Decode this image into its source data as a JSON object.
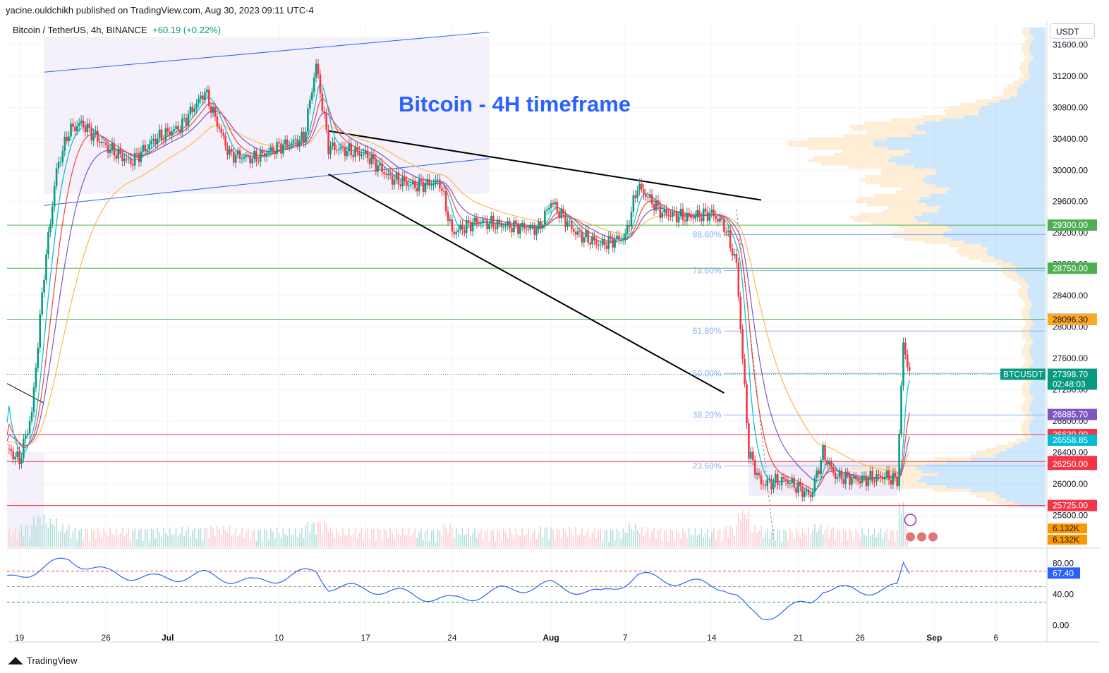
{
  "header": {
    "published": "yacine.ouldchikh published on TradingView.com, Aug 30, 2023 09:11 UTC-4",
    "symbol": "Bitcoin / TetherUS, 4h, BINANCE",
    "change": "+60.19 (+0.22%)",
    "currency": "USDT"
  },
  "annotation_title": "Bitcoin - 4H timeframe",
  "footer": {
    "brand": "TradingView",
    "logo": "tradingview-logo-icon"
  },
  "colors": {
    "up": "#089981",
    "down": "#f23645",
    "ema_fast": "#00bcd4",
    "ema_mid": "#f44336",
    "ema_slow": "#7e57c2",
    "ema_long": "#ffb74d",
    "rsi": "#2962ff",
    "fib": "#8fb0f5",
    "green_level": "#4caf50",
    "red_level": "#f23645",
    "title": "#2962ff"
  },
  "chart_data": [
    {
      "type": "candlestick",
      "title": "Bitcoin / TetherUS, 4h, BINANCE",
      "y_axis": {
        "ticks": [
          25600,
          26000,
          26400,
          26800,
          27200,
          27600,
          28000,
          28400,
          28800,
          29200,
          29600,
          30000,
          30400,
          30800,
          31200,
          31600
        ],
        "tick_labels": [
          "25600.00",
          "26000.00",
          "26400.00",
          "26800.00",
          "27200.00",
          "27600.00",
          "28000.00",
          "28400.00",
          "28800.00",
          "29200.00",
          "29600.00",
          "30000.00",
          "30400.00",
          "30800.00",
          "31200.00",
          "31600.00"
        ],
        "ylim": [
          25200,
          31900
        ]
      },
      "x_axis": {
        "tick_labels": [
          "19",
          "26",
          "Jul",
          "10",
          "17",
          "24",
          "Aug",
          "7",
          "14",
          "21",
          "26",
          "Sep",
          "6"
        ],
        "tick_dates": [
          "2023-06-19",
          "2023-06-26",
          "2023-07-01",
          "2023-07-10",
          "2023-07-17",
          "2023-07-24",
          "2023-08-01",
          "2023-08-07",
          "2023-08-14",
          "2023-08-21",
          "2023-08-26",
          "2023-09-01",
          "2023-09-06"
        ],
        "xlim": [
          "2023-06-18",
          "2023-09-10"
        ]
      },
      "price_path": [
        {
          "date": "2023-06-18",
          "price": 26450
        },
        {
          "date": "2023-06-19",
          "price": 26300
        },
        {
          "date": "2023-06-20",
          "price": 26900
        },
        {
          "date": "2023-06-21",
          "price": 28700
        },
        {
          "date": "2023-06-22",
          "price": 30000
        },
        {
          "date": "2023-06-23",
          "price": 30500
        },
        {
          "date": "2023-06-24",
          "price": 30600
        },
        {
          "date": "2023-06-26",
          "price": 30300
        },
        {
          "date": "2023-06-28",
          "price": 30100
        },
        {
          "date": "2023-06-30",
          "price": 30400
        },
        {
          "date": "2023-07-02",
          "price": 30550
        },
        {
          "date": "2023-07-04",
          "price": 31000
        },
        {
          "date": "2023-07-06",
          "price": 30200
        },
        {
          "date": "2023-07-08",
          "price": 30150
        },
        {
          "date": "2023-07-10",
          "price": 30300
        },
        {
          "date": "2023-07-12",
          "price": 30400
        },
        {
          "date": "2023-07-13",
          "price": 31350
        },
        {
          "date": "2023-07-14",
          "price": 30300
        },
        {
          "date": "2023-07-17",
          "price": 30200
        },
        {
          "date": "2023-07-19",
          "price": 29900
        },
        {
          "date": "2023-07-21",
          "price": 29800
        },
        {
          "date": "2023-07-23",
          "price": 29850
        },
        {
          "date": "2023-07-24",
          "price": 29200
        },
        {
          "date": "2023-07-26",
          "price": 29350
        },
        {
          "date": "2023-07-28",
          "price": 29300
        },
        {
          "date": "2023-07-31",
          "price": 29250
        },
        {
          "date": "2023-08-01",
          "price": 29600
        },
        {
          "date": "2023-08-03",
          "price": 29200
        },
        {
          "date": "2023-08-05",
          "price": 29050
        },
        {
          "date": "2023-08-07",
          "price": 29150
        },
        {
          "date": "2023-08-08",
          "price": 29800
        },
        {
          "date": "2023-08-10",
          "price": 29450
        },
        {
          "date": "2023-08-12",
          "price": 29400
        },
        {
          "date": "2023-08-14",
          "price": 29450
        },
        {
          "date": "2023-08-15",
          "price": 29300
        },
        {
          "date": "2023-08-16",
          "price": 28800
        },
        {
          "date": "2023-08-17",
          "price": 26400
        },
        {
          "date": "2023-08-18",
          "price": 26000
        },
        {
          "date": "2023-08-20",
          "price": 26050
        },
        {
          "date": "2023-08-22",
          "price": 25850
        },
        {
          "date": "2023-08-23",
          "price": 26400
        },
        {
          "date": "2023-08-24",
          "price": 26100
        },
        {
          "date": "2023-08-26",
          "price": 26050
        },
        {
          "date": "2023-08-28",
          "price": 26100
        },
        {
          "date": "2023-08-29",
          "price": 26050
        },
        {
          "date": "2023-08-29T12:00",
          "price": 27800
        },
        {
          "date": "2023-08-30",
          "price": 27398.7
        }
      ],
      "last_price": {
        "symbol": "BTCUSDT",
        "value": "27398.70",
        "countdown": "02:48:03"
      },
      "price_labels": [
        "29300.00",
        "28750.00",
        "28100.00",
        "28096.30",
        "26885.70",
        "26630.00",
        "26558.85",
        "26285.85",
        "26250.00",
        "25725.00"
      ],
      "horizontal_levels": [
        {
          "value": 29300,
          "label": "29300.00",
          "color": "green"
        },
        {
          "value": 28750,
          "label": "28750.00",
          "color": "green"
        },
        {
          "value": 28100,
          "label": "28100.00",
          "color": "green"
        },
        {
          "value": 26630,
          "label": "26630.00",
          "color": "red"
        },
        {
          "value": 26285.85,
          "label": "26285.85",
          "color": "red"
        },
        {
          "value": 25725,
          "label": "25725.00",
          "color": "red"
        }
      ],
      "moving_average_labels": [
        {
          "value": 28096.3,
          "label": "28096.30",
          "color": "orange"
        },
        {
          "value": 26885.7,
          "label": "26885.70",
          "color": "purple"
        },
        {
          "value": 26558.85,
          "label": "26558.85",
          "color": "cyan"
        },
        {
          "value": 26250,
          "label": "26250.00",
          "color": "red"
        }
      ],
      "fibonacci": [
        {
          "label": "88.60%",
          "value": 29180
        },
        {
          "label": "78.60%",
          "value": 28720
        },
        {
          "label": "61.80%",
          "value": 27950
        },
        {
          "label": "50.00%",
          "value": 27410
        },
        {
          "label": "38.20%",
          "value": 26880
        },
        {
          "label": "23.60%",
          "value": 26230
        }
      ],
      "volume_labels": [
        "6.132K",
        "6.132K"
      ],
      "grid": true
    },
    {
      "type": "line",
      "name": "RSI",
      "y_axis": {
        "tick_labels": [
          "80.00",
          "40.00",
          "0.00"
        ],
        "ticks": [
          80,
          40,
          0
        ],
        "ylim": [
          -5,
          95
        ]
      },
      "current_value": "67.40",
      "bands": [
        70,
        50,
        30
      ],
      "points": [
        {
          "date": "2023-06-18",
          "value": 58
        },
        {
          "date": "2023-06-21",
          "value": 75
        },
        {
          "date": "2023-06-23",
          "value": 85
        },
        {
          "date": "2023-06-26",
          "value": 68
        },
        {
          "date": "2023-06-30",
          "value": 60
        },
        {
          "date": "2023-07-04",
          "value": 65
        },
        {
          "date": "2023-07-08",
          "value": 55
        },
        {
          "date": "2023-07-13",
          "value": 70
        },
        {
          "date": "2023-07-14",
          "value": 50
        },
        {
          "date": "2023-07-18",
          "value": 46
        },
        {
          "date": "2023-07-24",
          "value": 32
        },
        {
          "date": "2023-07-28",
          "value": 45
        },
        {
          "date": "2023-08-01",
          "value": 52
        },
        {
          "date": "2023-08-05",
          "value": 40
        },
        {
          "date": "2023-08-08",
          "value": 64
        },
        {
          "date": "2023-08-12",
          "value": 55
        },
        {
          "date": "2023-08-15",
          "value": 50
        },
        {
          "date": "2023-08-16",
          "value": 38
        },
        {
          "date": "2023-08-17",
          "value": 18
        },
        {
          "date": "2023-08-18",
          "value": 10
        },
        {
          "date": "2023-08-20",
          "value": 20
        },
        {
          "date": "2023-08-22",
          "value": 30
        },
        {
          "date": "2023-08-23",
          "value": 48
        },
        {
          "date": "2023-08-26",
          "value": 44
        },
        {
          "date": "2023-08-29",
          "value": 48
        },
        {
          "date": "2023-08-29T12:00",
          "value": 78
        },
        {
          "date": "2023-08-30",
          "value": 67.4
        }
      ]
    }
  ]
}
